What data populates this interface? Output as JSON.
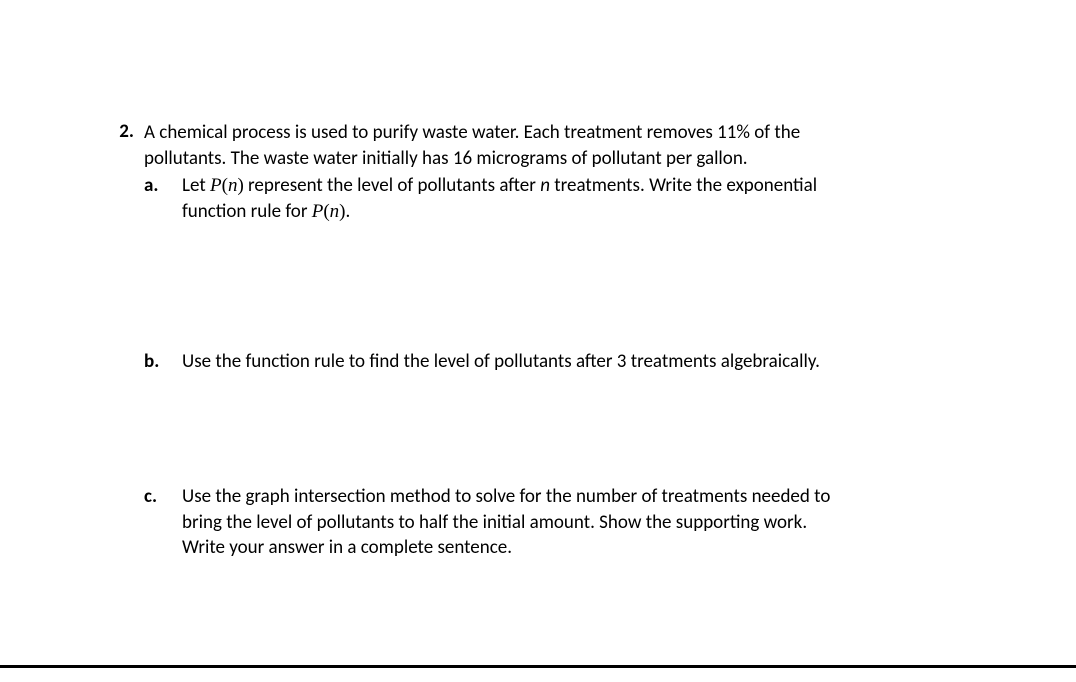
{
  "problem": {
    "number": "2.",
    "intro_line1": "A chemical process is used to purify waste water.  Each treatment removes 11% of the",
    "intro_line2": "pollutants.   The waste water initially has 16 micrograms of pollutant per gallon.",
    "parts": {
      "a": {
        "letter": "a.",
        "t1": "Let  ",
        "pn_P": "P",
        "pn_open": "(",
        "pn_n": "n",
        "pn_close": ")",
        "t2": " represent the level of pollutants after ",
        "n_italic": "n",
        "t3": " treatments.  Write the exponential",
        "t4": "function rule for ",
        "t5": "."
      },
      "b": {
        "letter": "b.",
        "text": "Use the function rule to find the level of pollutants after 3 treatments algebraically."
      },
      "c": {
        "letter": "c.",
        "line1": "Use the graph intersection method to solve for the number of treatments needed to",
        "line2": "bring the level of pollutants to half the initial amount.   Show the supporting work.",
        "line3": "Write your answer in a complete sentence."
      }
    }
  },
  "style": {
    "background": "#ffffff",
    "text_color": "#000000",
    "font_size_pt": 14,
    "rule_color": "#000000"
  }
}
